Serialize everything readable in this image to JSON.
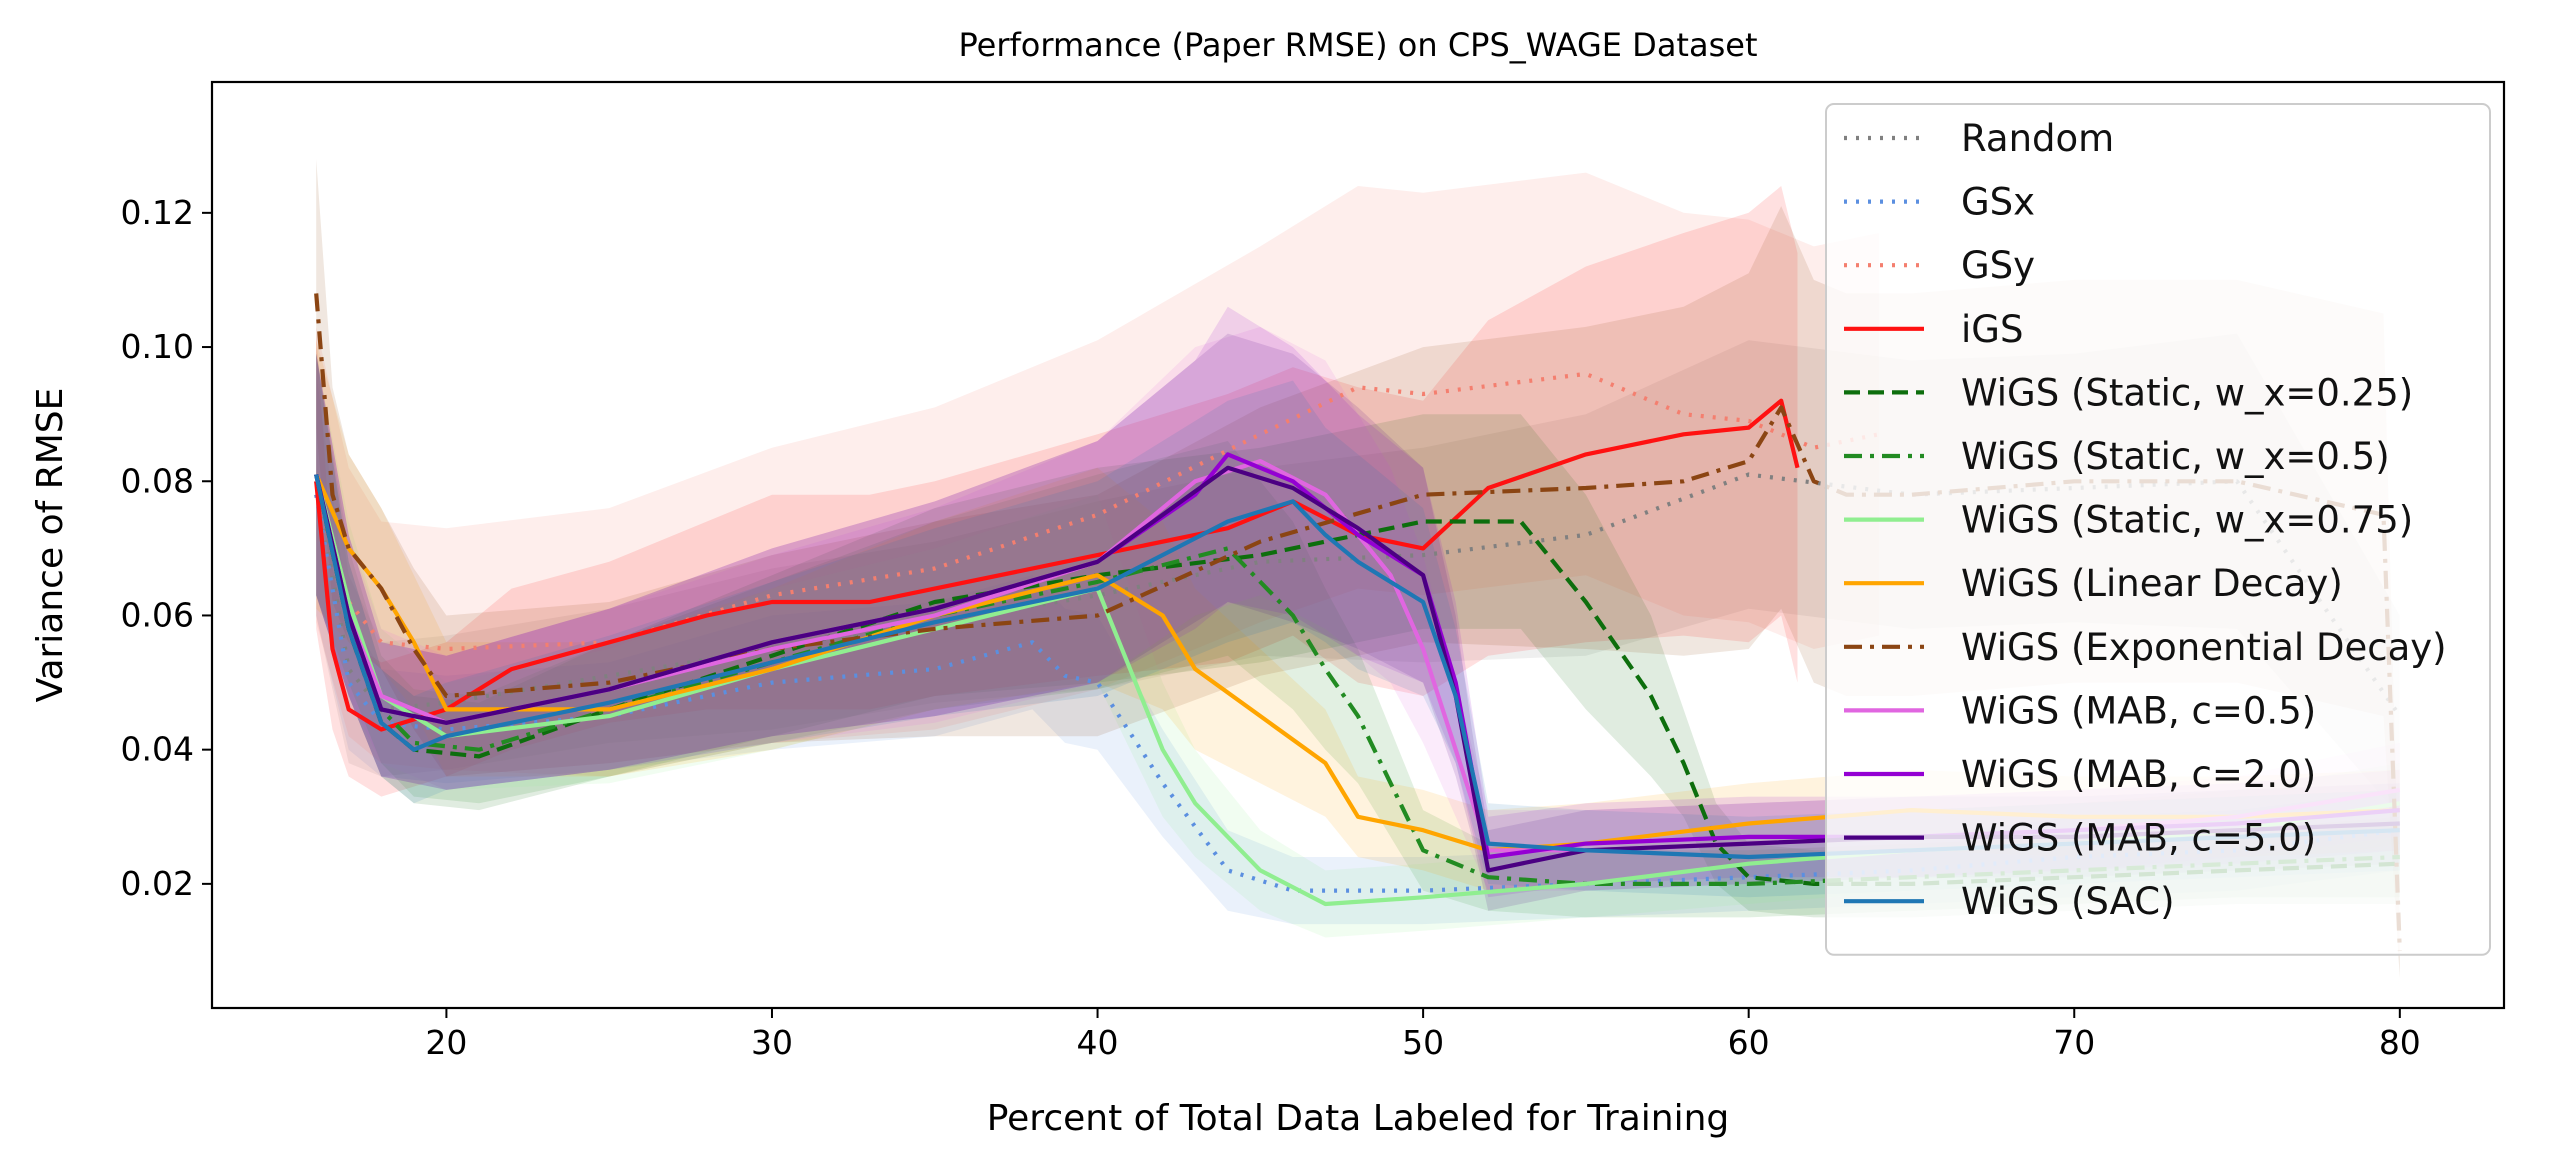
{
  "chart_data": {
    "type": "line",
    "title": "Performance (Paper RMSE) on CPS_WAGE Dataset",
    "xlabel": "Percent of Total Data Labeled for Training",
    "ylabel": "Variance of RMSE",
    "xlim": [
      12.8,
      83.2
    ],
    "ylim": [
      0.0015,
      0.1395
    ],
    "xticks": [
      20,
      30,
      40,
      50,
      60,
      70,
      80
    ],
    "yticks": [
      0.02,
      0.04,
      0.06,
      0.08,
      0.1,
      0.12
    ],
    "xtick_labels": [
      "20",
      "30",
      "40",
      "50",
      "60",
      "70",
      "80"
    ],
    "ytick_labels": [
      "0.02",
      "0.04",
      "0.06",
      "0.08",
      "0.10",
      "0.12"
    ],
    "grid": false,
    "legend_position": "upper right",
    "shaded_bands": true,
    "series": [
      {
        "name": "Random",
        "color": "#808080",
        "dash": "dotted",
        "x": [
          16,
          17,
          18,
          20,
          25,
          30,
          35,
          40,
          45,
          50,
          55,
          60,
          65,
          70,
          75,
          80
        ],
        "y": [
          0.08,
          0.052,
          0.046,
          0.047,
          0.051,
          0.055,
          0.059,
          0.063,
          0.068,
          0.069,
          0.072,
          0.081,
          0.078,
          0.079,
          0.08,
          0.045
        ],
        "band": [
          0.02,
          0.014,
          0.01,
          0.01,
          0.01,
          0.012,
          0.012,
          0.014,
          0.014,
          0.016,
          0.018,
          0.02,
          0.02,
          0.02,
          0.022,
          0.015
        ]
      },
      {
        "name": "GSx",
        "color": "#5b8fe0",
        "dash": "dotted",
        "x": [
          16,
          17,
          18,
          20,
          25,
          30,
          35,
          38,
          39,
          40,
          42,
          44,
          46,
          50,
          55,
          60,
          65,
          70,
          75,
          80
        ],
        "y": [
          0.078,
          0.05,
          0.044,
          0.043,
          0.045,
          0.05,
          0.052,
          0.056,
          0.051,
          0.05,
          0.035,
          0.022,
          0.019,
          0.019,
          0.02,
          0.021,
          0.022,
          0.024,
          0.025,
          0.028
        ],
        "band": [
          0.018,
          0.01,
          0.008,
          0.008,
          0.008,
          0.01,
          0.01,
          0.01,
          0.01,
          0.01,
          0.008,
          0.006,
          0.005,
          0.005,
          0.005,
          0.005,
          0.005,
          0.006,
          0.006,
          0.006
        ]
      },
      {
        "name": "GSy",
        "color": "#f47f6f",
        "dash": "dotted",
        "x": [
          16,
          17,
          18,
          20,
          25,
          30,
          35,
          40,
          45,
          48,
          50,
          55,
          58,
          60,
          62,
          64
        ],
        "y": [
          0.081,
          0.062,
          0.056,
          0.055,
          0.056,
          0.063,
          0.067,
          0.075,
          0.087,
          0.094,
          0.093,
          0.096,
          0.09,
          0.089,
          0.085,
          0.087
        ],
        "band": [
          0.022,
          0.02,
          0.018,
          0.018,
          0.02,
          0.022,
          0.024,
          0.026,
          0.028,
          0.03,
          0.03,
          0.03,
          0.03,
          0.03,
          0.03,
          0.03
        ]
      },
      {
        "name": "iGS",
        "color": "#ff1111",
        "dash": "solid",
        "x": [
          16,
          16.5,
          17,
          18,
          20,
          22,
          25,
          28,
          30,
          33,
          35,
          40,
          44,
          46,
          48,
          50,
          52,
          55,
          58,
          60,
          61,
          61.5
        ],
        "y": [
          0.08,
          0.055,
          0.046,
          0.043,
          0.046,
          0.052,
          0.056,
          0.06,
          0.062,
          0.062,
          0.064,
          0.069,
          0.073,
          0.077,
          0.072,
          0.07,
          0.079,
          0.084,
          0.087,
          0.088,
          0.092,
          0.082
        ],
        "band": [
          0.022,
          0.012,
          0.01,
          0.01,
          0.01,
          0.012,
          0.012,
          0.014,
          0.016,
          0.016,
          0.016,
          0.018,
          0.02,
          0.02,
          0.022,
          0.022,
          0.025,
          0.028,
          0.03,
          0.032,
          0.032,
          0.032
        ]
      },
      {
        "name": "WiGS (Static, w_x=0.25)",
        "color": "#0d6e0d",
        "dash": "dashed",
        "x": [
          16,
          17,
          18,
          19,
          21,
          25,
          30,
          35,
          40,
          45,
          50,
          53,
          55,
          57,
          58,
          59,
          60,
          62,
          65,
          70,
          75,
          80
        ],
        "y": [
          0.081,
          0.058,
          0.044,
          0.04,
          0.039,
          0.046,
          0.054,
          0.062,
          0.066,
          0.069,
          0.074,
          0.074,
          0.062,
          0.048,
          0.038,
          0.026,
          0.021,
          0.02,
          0.02,
          0.021,
          0.022,
          0.023
        ],
        "band": [
          0.018,
          0.01,
          0.008,
          0.008,
          0.008,
          0.01,
          0.012,
          0.014,
          0.016,
          0.016,
          0.016,
          0.016,
          0.016,
          0.012,
          0.008,
          0.006,
          0.005,
          0.005,
          0.005,
          0.005,
          0.005,
          0.006
        ]
      },
      {
        "name": "WiGS (Static, w_x=0.5)",
        "color": "#228b22",
        "dash": "dashdot",
        "x": [
          16,
          17,
          18,
          19,
          21,
          25,
          30,
          35,
          40,
          44,
          46,
          47,
          48,
          49,
          50,
          52,
          55,
          60,
          65,
          70,
          75,
          80
        ],
        "y": [
          0.081,
          0.06,
          0.046,
          0.041,
          0.04,
          0.046,
          0.053,
          0.06,
          0.065,
          0.07,
          0.06,
          0.052,
          0.045,
          0.035,
          0.025,
          0.021,
          0.02,
          0.02,
          0.021,
          0.022,
          0.023,
          0.024
        ],
        "band": [
          0.018,
          0.01,
          0.008,
          0.008,
          0.008,
          0.01,
          0.012,
          0.014,
          0.016,
          0.016,
          0.014,
          0.012,
          0.01,
          0.008,
          0.006,
          0.005,
          0.005,
          0.005,
          0.005,
          0.005,
          0.005,
          0.006
        ]
      },
      {
        "name": "WiGS (Static, w_x=0.75)",
        "color": "#90ee90",
        "dash": "solid",
        "x": [
          16,
          17,
          18,
          20,
          25,
          30,
          35,
          40,
          41,
          42,
          43,
          45,
          47,
          50,
          55,
          60,
          65,
          70,
          75,
          80
        ],
        "y": [
          0.081,
          0.062,
          0.048,
          0.042,
          0.045,
          0.052,
          0.058,
          0.064,
          0.052,
          0.04,
          0.032,
          0.022,
          0.017,
          0.018,
          0.02,
          0.023,
          0.025,
          0.026,
          0.028,
          0.032
        ],
        "band": [
          0.018,
          0.012,
          0.01,
          0.008,
          0.01,
          0.012,
          0.012,
          0.014,
          0.012,
          0.01,
          0.008,
          0.006,
          0.005,
          0.005,
          0.005,
          0.006,
          0.006,
          0.006,
          0.006,
          0.006
        ]
      },
      {
        "name": "WiGS (Linear Decay)",
        "color": "#ffa500",
        "dash": "solid",
        "x": [
          16,
          17,
          18,
          19,
          20,
          25,
          30,
          35,
          40,
          42,
          43,
          45,
          47,
          48,
          50,
          52,
          55,
          60,
          65,
          70,
          75,
          80
        ],
        "y": [
          0.081,
          0.07,
          0.064,
          0.056,
          0.046,
          0.046,
          0.052,
          0.06,
          0.066,
          0.06,
          0.052,
          0.045,
          0.038,
          0.03,
          0.028,
          0.025,
          0.026,
          0.029,
          0.031,
          0.03,
          0.03,
          0.031
        ],
        "band": [
          0.02,
          0.014,
          0.012,
          0.01,
          0.01,
          0.01,
          0.012,
          0.014,
          0.016,
          0.014,
          0.012,
          0.01,
          0.008,
          0.006,
          0.006,
          0.006,
          0.006,
          0.006,
          0.006,
          0.006,
          0.006,
          0.006
        ]
      },
      {
        "name": "WiGS (Exponential Decay)",
        "color": "#8b4513",
        "dash": "dashdot",
        "x": [
          16,
          16.5,
          17,
          18,
          19,
          20,
          25,
          30,
          35,
          40,
          45,
          50,
          55,
          58,
          60,
          61,
          62,
          63,
          65,
          70,
          75,
          79.5,
          80
        ],
        "y": [
          0.108,
          0.078,
          0.07,
          0.064,
          0.055,
          0.048,
          0.05,
          0.055,
          0.058,
          0.06,
          0.071,
          0.078,
          0.079,
          0.08,
          0.083,
          0.091,
          0.08,
          0.078,
          0.078,
          0.08,
          0.08,
          0.075,
          0.01
        ],
        "band": [
          0.02,
          0.016,
          0.014,
          0.012,
          0.012,
          0.012,
          0.012,
          0.014,
          0.016,
          0.018,
          0.02,
          0.022,
          0.024,
          0.026,
          0.028,
          0.03,
          0.03,
          0.03,
          0.03,
          0.03,
          0.03,
          0.03,
          0.004
        ]
      },
      {
        "name": "WiGS (MAB, c=0.5)",
        "color": "#e066e0",
        "dash": "solid",
        "x": [
          16,
          17,
          18,
          20,
          25,
          30,
          35,
          40,
          43,
          45,
          47,
          49,
          50,
          51,
          52,
          55,
          60,
          65,
          70,
          75,
          80
        ],
        "y": [
          0.081,
          0.06,
          0.048,
          0.044,
          0.049,
          0.055,
          0.06,
          0.068,
          0.08,
          0.083,
          0.078,
          0.066,
          0.055,
          0.04,
          0.025,
          0.025,
          0.026,
          0.027,
          0.028,
          0.03,
          0.034
        ],
        "band": [
          0.018,
          0.012,
          0.01,
          0.01,
          0.012,
          0.014,
          0.016,
          0.018,
          0.02,
          0.02,
          0.02,
          0.016,
          0.014,
          0.01,
          0.006,
          0.006,
          0.006,
          0.006,
          0.006,
          0.006,
          0.007
        ]
      },
      {
        "name": "WiGS (MAB, c=2.0)",
        "color": "#9400d3",
        "dash": "solid",
        "x": [
          16,
          17,
          18,
          20,
          25,
          30,
          35,
          40,
          43,
          44,
          46,
          48,
          50,
          51,
          52,
          55,
          60,
          65,
          70,
          75,
          80
        ],
        "y": [
          0.081,
          0.06,
          0.046,
          0.044,
          0.049,
          0.056,
          0.061,
          0.068,
          0.078,
          0.084,
          0.08,
          0.072,
          0.066,
          0.05,
          0.024,
          0.026,
          0.027,
          0.027,
          0.028,
          0.029,
          0.031
        ],
        "band": [
          0.018,
          0.012,
          0.01,
          0.01,
          0.012,
          0.014,
          0.016,
          0.018,
          0.02,
          0.022,
          0.02,
          0.018,
          0.016,
          0.012,
          0.006,
          0.006,
          0.006,
          0.006,
          0.006,
          0.006,
          0.006
        ]
      },
      {
        "name": "WiGS (MAB, c=5.0)",
        "color": "#4b0082",
        "dash": "solid",
        "x": [
          16,
          17,
          18,
          20,
          25,
          30,
          35,
          40,
          44,
          46,
          48,
          50,
          51,
          51.5,
          52,
          55,
          60,
          65,
          70,
          75,
          80
        ],
        "y": [
          0.081,
          0.06,
          0.046,
          0.044,
          0.049,
          0.056,
          0.061,
          0.068,
          0.082,
          0.079,
          0.073,
          0.066,
          0.048,
          0.035,
          0.022,
          0.025,
          0.026,
          0.027,
          0.027,
          0.028,
          0.029
        ],
        "band": [
          0.018,
          0.012,
          0.01,
          0.01,
          0.012,
          0.014,
          0.016,
          0.018,
          0.02,
          0.02,
          0.018,
          0.016,
          0.012,
          0.008,
          0.006,
          0.006,
          0.006,
          0.006,
          0.006,
          0.006,
          0.006
        ]
      },
      {
        "name": "WiGS (SAC)",
        "color": "#1f77b4",
        "dash": "solid",
        "x": [
          16,
          17,
          18,
          19,
          20,
          25,
          30,
          35,
          40,
          44,
          46,
          47,
          48,
          50,
          51,
          52,
          55,
          60,
          65,
          70,
          75,
          80
        ],
        "y": [
          0.081,
          0.058,
          0.044,
          0.04,
          0.042,
          0.047,
          0.053,
          0.059,
          0.064,
          0.074,
          0.077,
          0.072,
          0.068,
          0.062,
          0.048,
          0.026,
          0.025,
          0.024,
          0.025,
          0.026,
          0.027,
          0.028
        ],
        "band": [
          0.018,
          0.01,
          0.008,
          0.008,
          0.008,
          0.01,
          0.012,
          0.014,
          0.016,
          0.018,
          0.018,
          0.016,
          0.016,
          0.014,
          0.01,
          0.006,
          0.006,
          0.006,
          0.006,
          0.006,
          0.006,
          0.006
        ]
      }
    ]
  }
}
